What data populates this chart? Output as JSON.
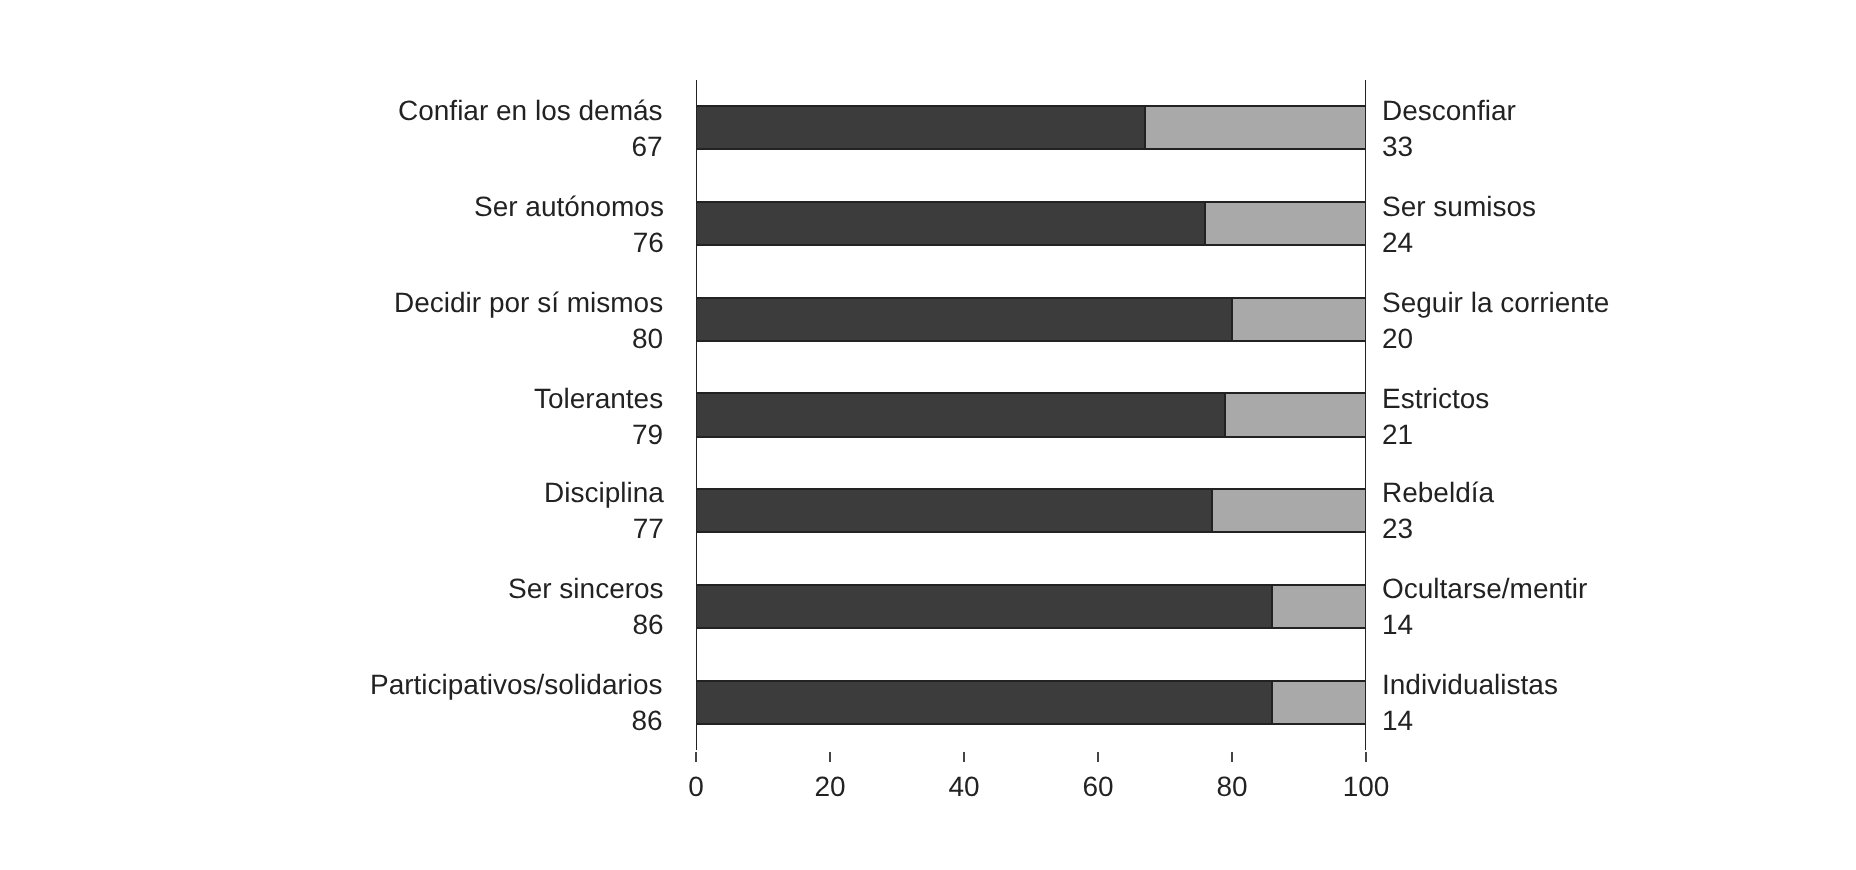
{
  "chart_data": {
    "type": "bar",
    "orientation": "horizontal",
    "stacked": true,
    "categories": [
      "Confiar en los demás",
      "Ser autónomos",
      "Decidir por sí mismos",
      "Tolerantes",
      "Disciplina",
      "Ser sinceros",
      "Participativos/solidarios"
    ],
    "y2_categories": [
      "Desconfiar",
      "Ser sumisos",
      "Seguir la corriente",
      "Estrictos",
      "Rebeldía",
      "Ocultarse/mentir",
      "Individualistas"
    ],
    "series": [
      {
        "color": "#3c3c3c",
        "values": [
          67,
          76,
          80,
          79,
          77,
          86,
          86
        ]
      },
      {
        "color": "#a9a9a9",
        "values": [
          33,
          24,
          20,
          21,
          23,
          14,
          14
        ]
      }
    ],
    "data_labels": true,
    "xlim": [
      0,
      100
    ],
    "xticks": [
      0,
      20,
      40,
      60,
      80,
      100
    ],
    "tick_labels": "x"
  }
}
